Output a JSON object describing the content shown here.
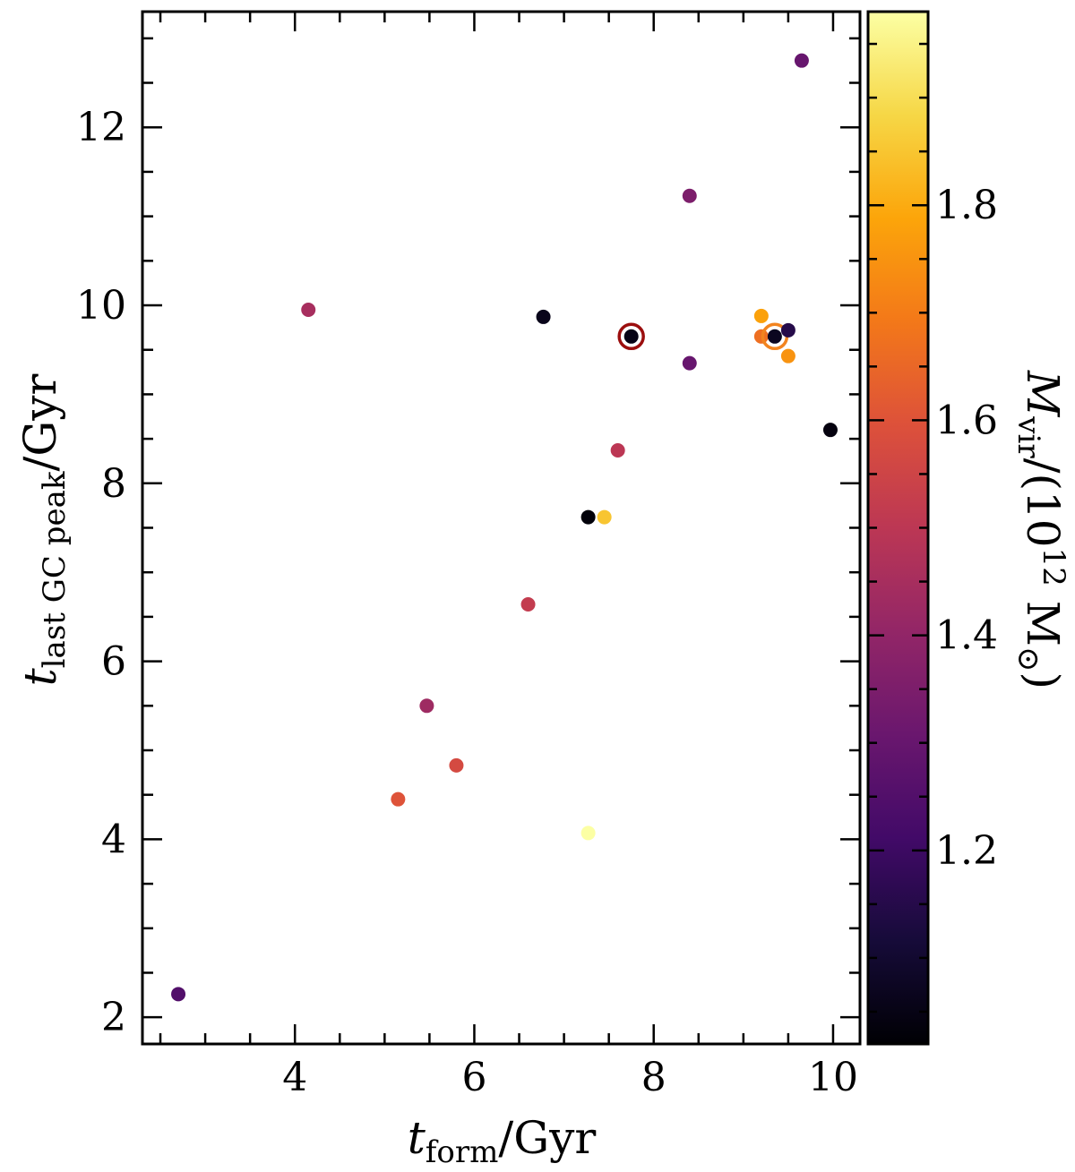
{
  "chart_data": {
    "type": "scatter",
    "xlabel": {
      "main": "t",
      "sub": "form",
      "rest": "/Gyr"
    },
    "ylabel": {
      "main": "t",
      "sub": "last GC peak",
      "rest": "/Gyr"
    },
    "xlim": [
      2.3,
      10.3
    ],
    "ylim": [
      1.7,
      13.3
    ],
    "xticks": [
      4,
      6,
      8,
      10
    ],
    "yticks": [
      2,
      4,
      6,
      8,
      10,
      12
    ],
    "colorbar": {
      "label": {
        "main": "M",
        "sub": "vir",
        "rest1": "/(10",
        "sup": "12",
        "rest2": " M",
        "sub2": "⊙",
        "rest3": ")"
      },
      "range": [
        1.02,
        1.98
      ],
      "ticks": [
        1.2,
        1.4,
        1.6,
        1.8
      ],
      "colormap": "inferno"
    },
    "points": [
      {
        "x": 2.7,
        "y": 2.26,
        "mvir": 1.25
      },
      {
        "x": 4.15,
        "y": 9.95,
        "mvir": 1.45
      },
      {
        "x": 5.15,
        "y": 4.45,
        "mvir": 1.6
      },
      {
        "x": 5.47,
        "y": 5.5,
        "mvir": 1.43
      },
      {
        "x": 5.8,
        "y": 4.83,
        "mvir": 1.57
      },
      {
        "x": 6.6,
        "y": 6.64,
        "mvir": 1.52
      },
      {
        "x": 6.77,
        "y": 9.87,
        "mvir": 1.06
      },
      {
        "x": 7.27,
        "y": 7.62,
        "mvir": 1.03
      },
      {
        "x": 7.45,
        "y": 7.62,
        "mvir": 1.85
      },
      {
        "x": 7.27,
        "y": 4.07,
        "mvir": 1.98
      },
      {
        "x": 7.6,
        "y": 8.37,
        "mvir": 1.5
      },
      {
        "x": 7.75,
        "y": 9.65,
        "mvir": 1.05,
        "ring": "#9b0e0e"
      },
      {
        "x": 8.4,
        "y": 11.23,
        "mvir": 1.35
      },
      {
        "x": 8.4,
        "y": 9.35,
        "mvir": 1.3
      },
      {
        "x": 9.2,
        "y": 9.88,
        "mvir": 1.78
      },
      {
        "x": 9.2,
        "y": 9.65,
        "mvir": 1.67
      },
      {
        "x": 9.35,
        "y": 9.65,
        "mvir": 1.07,
        "ring": "#f2841f"
      },
      {
        "x": 9.5,
        "y": 9.72,
        "mvir": 1.15
      },
      {
        "x": 9.5,
        "y": 9.43,
        "mvir": 1.75
      },
      {
        "x": 9.65,
        "y": 12.75,
        "mvir": 1.3
      },
      {
        "x": 9.97,
        "y": 8.6,
        "mvir": 1.04
      }
    ]
  }
}
